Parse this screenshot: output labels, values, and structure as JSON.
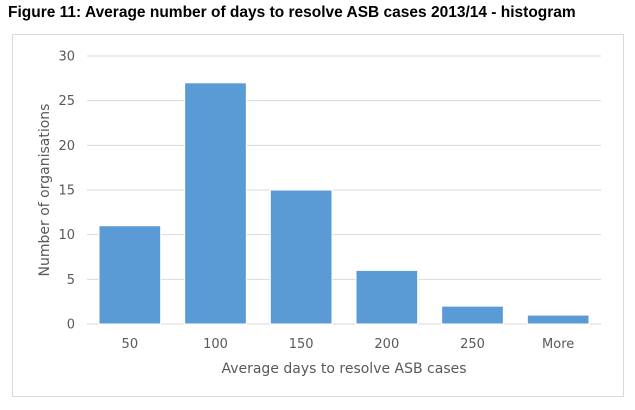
{
  "chart_data": {
    "type": "bar",
    "title": "Figure 11: Average number of days to resolve ASB cases 2013/14 - histogram",
    "xlabel": "Average days to resolve ASB cases",
    "ylabel": "Number of organisations",
    "categories": [
      "50",
      "100",
      "150",
      "200",
      "250",
      "More"
    ],
    "values": [
      11,
      27,
      15,
      6,
      2,
      1
    ],
    "ylim": [
      0,
      30
    ],
    "yticks": [
      0,
      5,
      10,
      15,
      20,
      25,
      30
    ],
    "grid": true,
    "legend": "none",
    "bar_color": "#5b9bd5"
  }
}
